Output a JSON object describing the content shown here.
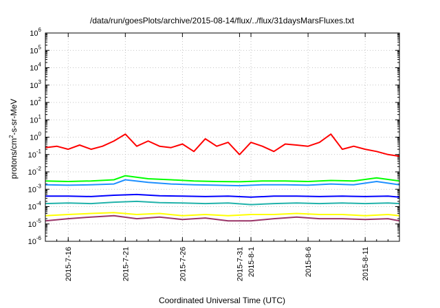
{
  "chart_data": {
    "type": "line",
    "title": "/data/run/goesPlots/archive/2015-08-14/flux/../flux/31daysMarsFluxes.txt",
    "xlabel": "Coordinated Universal Time (UTC)",
    "ylabel": {
      "pre": "protons/cm",
      "sup": "2",
      "post": "-s-sr-MeV"
    },
    "y_scale": "log",
    "ylim": [
      1e-06,
      1000000.0
    ],
    "y_ticks": [
      {
        "base": "10",
        "exp": "-6"
      },
      {
        "base": "10",
        "exp": "-5"
      },
      {
        "base": "10",
        "exp": "-4"
      },
      {
        "base": "10",
        "exp": "-3"
      },
      {
        "base": "10",
        "exp": "-2"
      },
      {
        "base": "10",
        "exp": "-1"
      },
      {
        "base": "10",
        "exp": "0"
      },
      {
        "base": "10",
        "exp": "1"
      },
      {
        "base": "10",
        "exp": "2"
      },
      {
        "base": "10",
        "exp": "3"
      },
      {
        "base": "10",
        "exp": "4"
      },
      {
        "base": "10",
        "exp": "5"
      },
      {
        "base": "10",
        "exp": "6"
      }
    ],
    "xlim": [
      "2015-07-14",
      "2015-08-14"
    ],
    "x_ticks": [
      "2015-7-16",
      "2015-7-21",
      "2015-7-26",
      "2015-7-31",
      "2015-8-1",
      "2015-8-6",
      "2015-8-11"
    ],
    "grid": true,
    "series": [
      {
        "color": "#ff0000",
        "x": [
          "2015-07-14",
          "2015-07-15",
          "2015-07-16",
          "2015-07-17",
          "2015-07-18",
          "2015-07-19",
          "2015-07-20",
          "2015-07-21",
          "2015-07-22",
          "2015-07-23",
          "2015-07-24",
          "2015-07-25",
          "2015-07-26",
          "2015-07-27",
          "2015-07-28",
          "2015-07-29",
          "2015-07-30",
          "2015-07-31",
          "2015-08-01",
          "2015-08-02",
          "2015-08-03",
          "2015-08-04",
          "2015-08-05",
          "2015-08-06",
          "2015-08-07",
          "2015-08-08",
          "2015-08-09",
          "2015-08-10",
          "2015-08-11",
          "2015-08-12",
          "2015-08-13",
          "2015-08-14"
        ],
        "values": [
          0.25,
          0.3,
          0.2,
          0.35,
          0.2,
          0.3,
          0.6,
          1.5,
          0.3,
          0.6,
          0.3,
          0.25,
          0.4,
          0.15,
          0.8,
          0.3,
          0.5,
          0.1,
          0.5,
          0.3,
          0.15,
          0.4,
          0.35,
          0.3,
          0.5,
          1.5,
          0.2,
          0.3,
          0.2,
          0.15,
          0.1,
          0.08
        ]
      },
      {
        "color": "#00ff00",
        "x": [
          "2015-07-14",
          "2015-07-16",
          "2015-07-18",
          "2015-07-20",
          "2015-07-21",
          "2015-07-23",
          "2015-07-25",
          "2015-07-27",
          "2015-07-29",
          "2015-07-31",
          "2015-08-02",
          "2015-08-04",
          "2015-08-06",
          "2015-08-08",
          "2015-08-10",
          "2015-08-12",
          "2015-08-14"
        ],
        "values": [
          0.003,
          0.0028,
          0.003,
          0.0035,
          0.006,
          0.004,
          0.0035,
          0.003,
          0.0028,
          0.0027,
          0.003,
          0.003,
          0.0028,
          0.0032,
          0.003,
          0.0045,
          0.003
        ]
      },
      {
        "color": "#1e90ff",
        "x": [
          "2015-07-14",
          "2015-07-16",
          "2015-07-18",
          "2015-07-20",
          "2015-07-21",
          "2015-07-23",
          "2015-07-25",
          "2015-07-27",
          "2015-07-29",
          "2015-07-31",
          "2015-08-02",
          "2015-08-04",
          "2015-08-06",
          "2015-08-08",
          "2015-08-10",
          "2015-08-12",
          "2015-08-14"
        ],
        "values": [
          0.0018,
          0.0017,
          0.0018,
          0.002,
          0.0035,
          0.0025,
          0.002,
          0.0018,
          0.0017,
          0.0016,
          0.0018,
          0.0018,
          0.0017,
          0.002,
          0.0018,
          0.0028,
          0.0018
        ]
      },
      {
        "color": "#0000ff",
        "x": [
          "2015-07-14",
          "2015-07-16",
          "2015-07-18",
          "2015-07-20",
          "2015-07-22",
          "2015-07-24",
          "2015-07-26",
          "2015-07-28",
          "2015-07-30",
          "2015-08-01",
          "2015-08-03",
          "2015-08-05",
          "2015-08-07",
          "2015-08-09",
          "2015-08-11",
          "2015-08-13",
          "2015-08-14"
        ],
        "values": [
          0.0004,
          0.0004,
          0.00038,
          0.00045,
          0.0005,
          0.00042,
          0.0004,
          0.00038,
          0.0004,
          0.00035,
          0.0004,
          0.0004,
          0.00038,
          0.0004,
          0.00038,
          0.0004,
          0.00035
        ]
      },
      {
        "color": "#20b2aa",
        "x": [
          "2015-07-14",
          "2015-07-16",
          "2015-07-18",
          "2015-07-20",
          "2015-07-22",
          "2015-07-24",
          "2015-07-26",
          "2015-07-28",
          "2015-07-30",
          "2015-08-01",
          "2015-08-03",
          "2015-08-05",
          "2015-08-07",
          "2015-08-09",
          "2015-08-11",
          "2015-08-13",
          "2015-08-14"
        ],
        "values": [
          0.00015,
          0.00016,
          0.00015,
          0.00018,
          0.0002,
          0.00017,
          0.00016,
          0.00015,
          0.00016,
          0.00013,
          0.00015,
          0.00016,
          0.00015,
          0.00016,
          0.00015,
          0.00016,
          0.00015
        ]
      },
      {
        "color": "#ffff00",
        "x": [
          "2015-07-14",
          "2015-07-16",
          "2015-07-18",
          "2015-07-20",
          "2015-07-22",
          "2015-07-24",
          "2015-07-26",
          "2015-07-28",
          "2015-07-30",
          "2015-08-01",
          "2015-08-03",
          "2015-08-05",
          "2015-08-07",
          "2015-08-09",
          "2015-08-11",
          "2015-08-13",
          "2015-08-14"
        ],
        "values": [
          3e-05,
          3.5e-05,
          4e-05,
          4.5e-05,
          3.5e-05,
          4e-05,
          3e-05,
          3.5e-05,
          3e-05,
          3.5e-05,
          3.5e-05,
          4e-05,
          3.5e-05,
          3.5e-05,
          3e-05,
          3.5e-05,
          3e-05
        ]
      },
      {
        "color": "#993366",
        "x": [
          "2015-07-14",
          "2015-07-16",
          "2015-07-18",
          "2015-07-20",
          "2015-07-22",
          "2015-07-24",
          "2015-07-26",
          "2015-07-28",
          "2015-07-30",
          "2015-08-01",
          "2015-08-03",
          "2015-08-05",
          "2015-08-07",
          "2015-08-09",
          "2015-08-11",
          "2015-08-13",
          "2015-08-14"
        ],
        "values": [
          1.5e-05,
          2e-05,
          2.5e-05,
          3e-05,
          2e-05,
          2.5e-05,
          1.8e-05,
          2.2e-05,
          1.5e-05,
          1.5e-05,
          2e-05,
          2.5e-05,
          2e-05,
          2e-05,
          1.8e-05,
          2e-05,
          1.5e-05
        ]
      }
    ]
  }
}
